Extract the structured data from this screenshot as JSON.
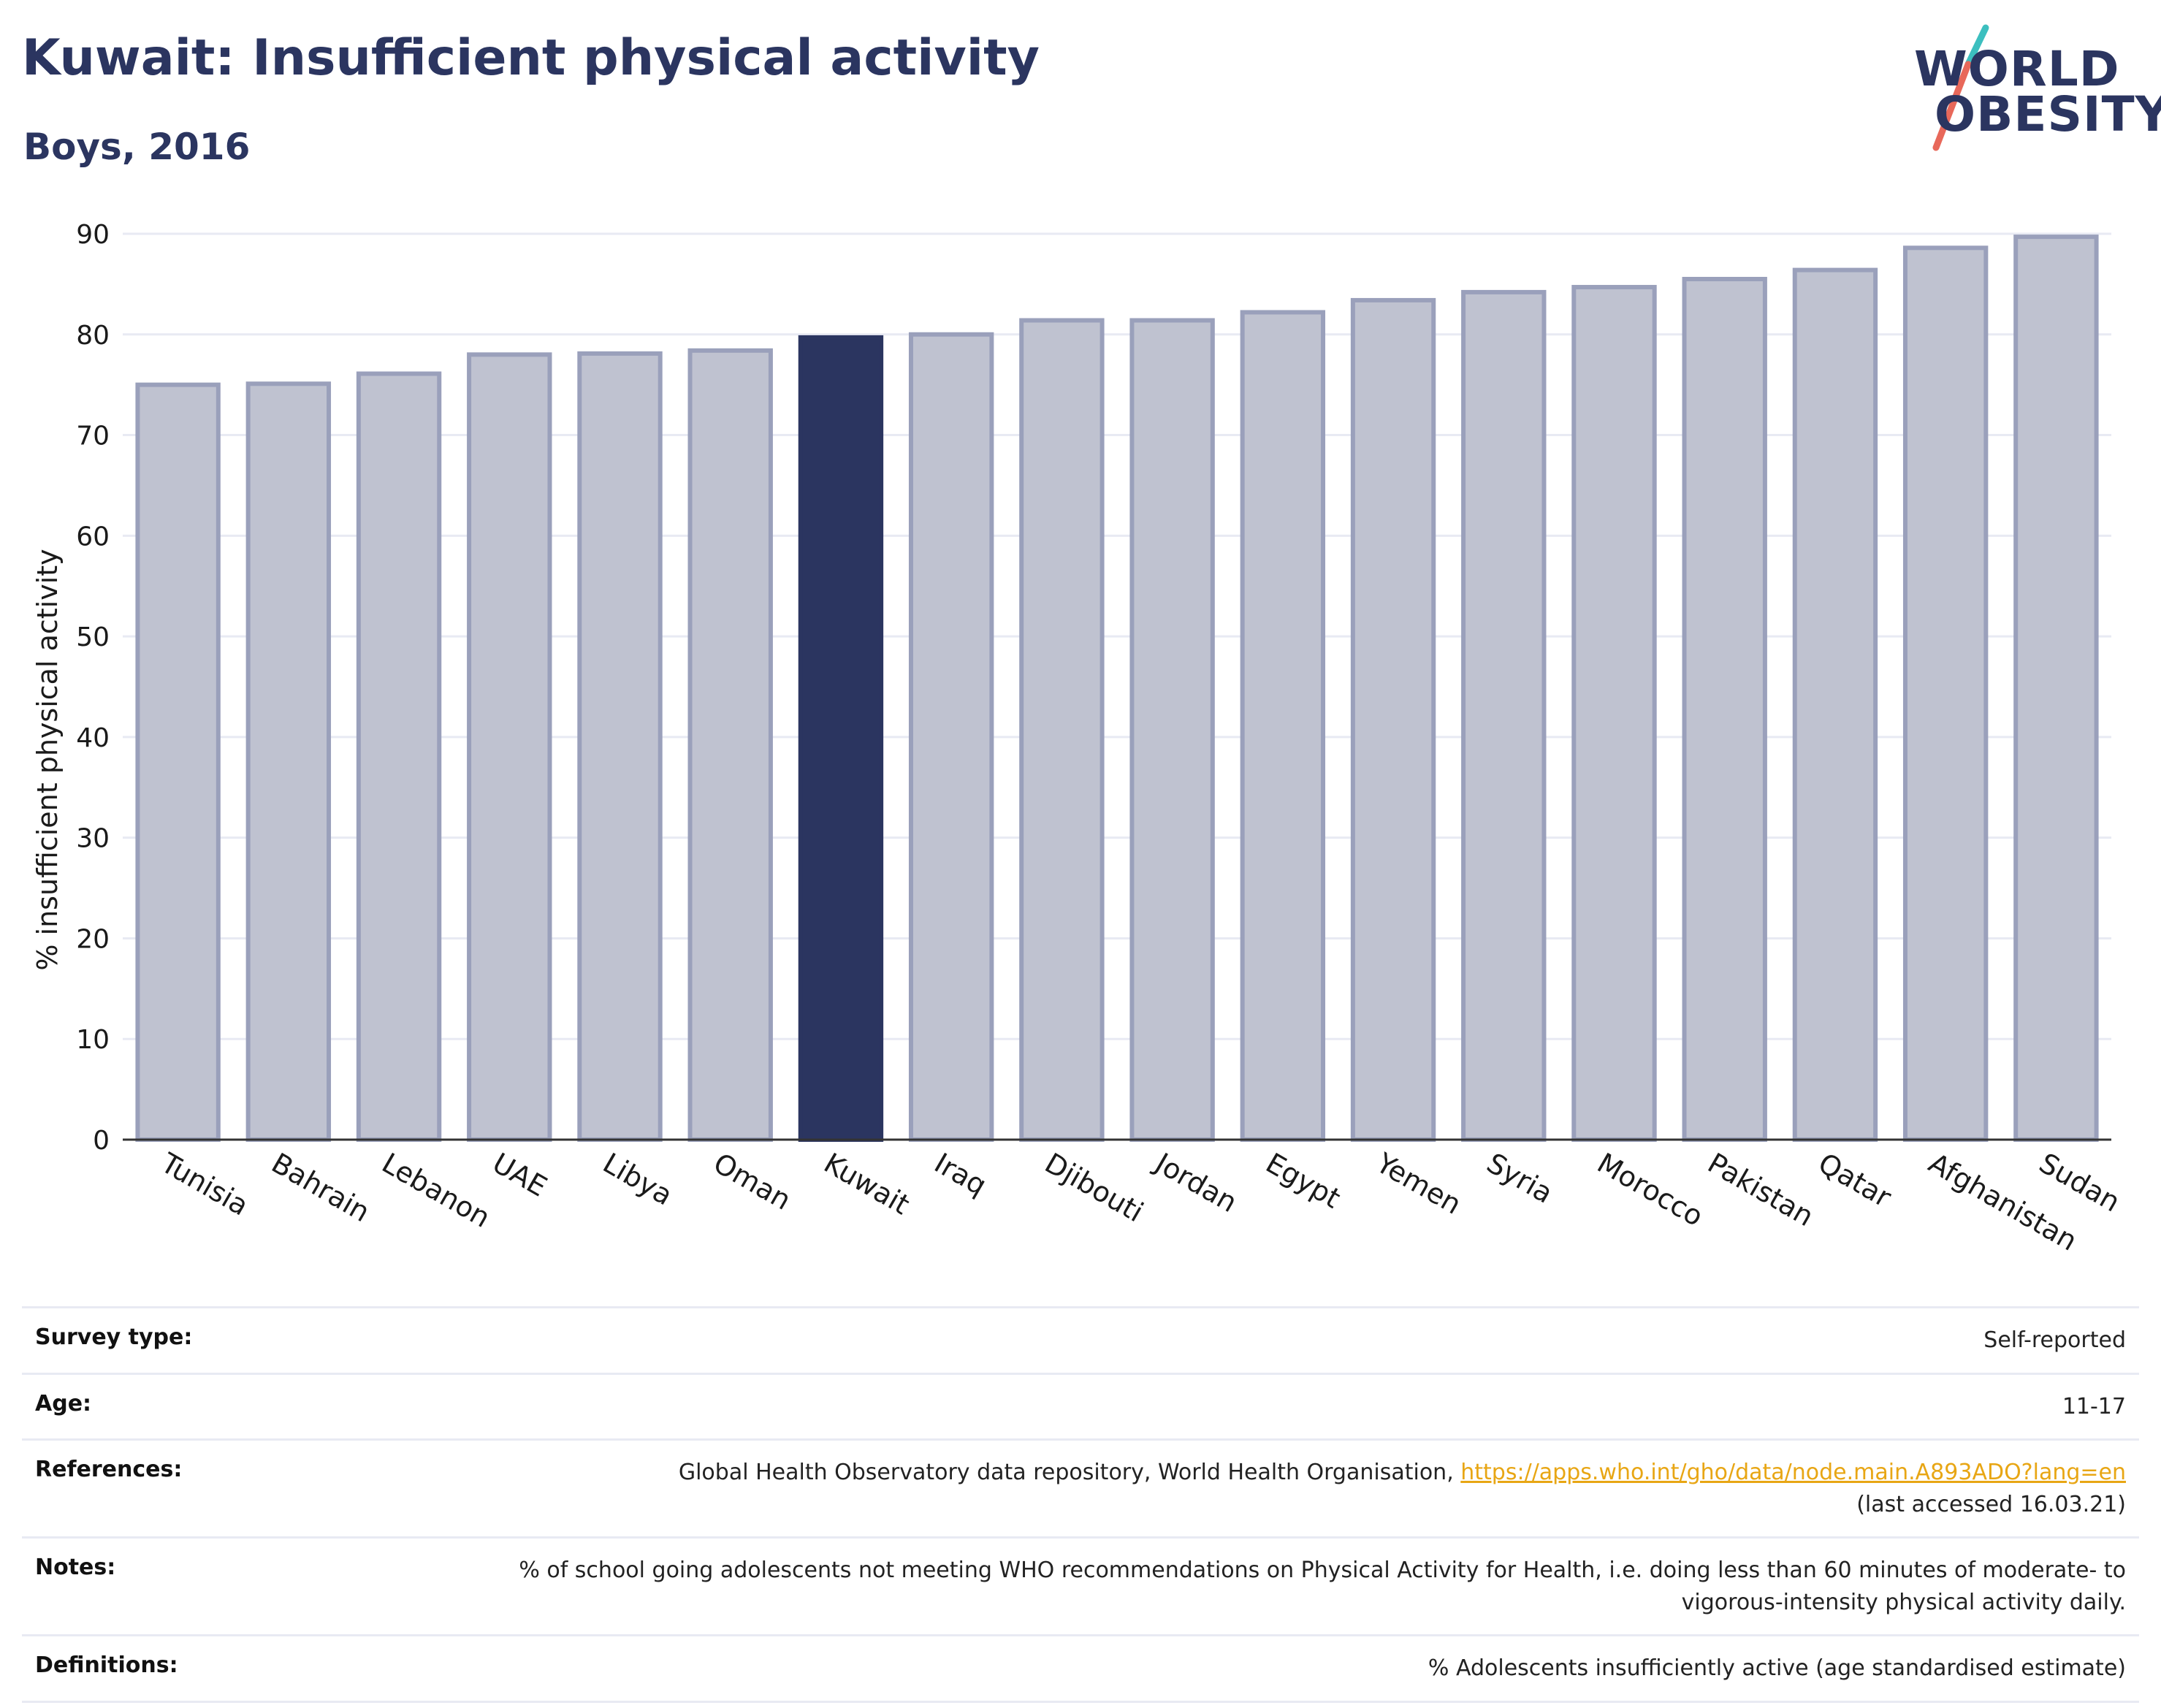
{
  "header": {
    "title": "Kuwait: Insufficient physical activity",
    "subtitle": "Boys, 2016"
  },
  "logo": {
    "line1": "WORLD",
    "line2": "OBESITY",
    "colors": {
      "text": "#2b3560",
      "slash_top": "#3cbfbf",
      "slash_bottom": "#e8685a"
    }
  },
  "chart_data": {
    "type": "bar",
    "title": "Kuwait: Insufficient physical activity",
    "subtitle": "Boys, 2016",
    "ylabel": "% insufficient physical activity",
    "xlabel": "",
    "ylim": [
      0,
      90
    ],
    "yticks": [
      0,
      10,
      20,
      30,
      40,
      50,
      60,
      70,
      80,
      90
    ],
    "grid": true,
    "highlight": "Kuwait",
    "categories": [
      "Tunisia",
      "Bahrain",
      "Lebanon",
      "UAE",
      "Libya",
      "Oman",
      "Kuwait",
      "Iraq",
      "Djibouti",
      "Jordan",
      "Egypt",
      "Yemen",
      "Syria",
      "Morocco",
      "Pakistan",
      "Qatar",
      "Afghanistan",
      "Sudan"
    ],
    "values": [
      75.0,
      75.1,
      76.1,
      78.0,
      78.1,
      78.4,
      79.7,
      80.0,
      81.4,
      81.4,
      82.2,
      83.4,
      84.2,
      84.7,
      85.5,
      86.4,
      88.6,
      89.7
    ],
    "colors": {
      "bar": "#bfc2d0",
      "bar_edge": "#9aa0bb",
      "highlight": "#2b3560",
      "grid": "#e8eaf3",
      "axis": "#333333"
    }
  },
  "info": {
    "rows": [
      {
        "label": "Survey type:",
        "value": "Self-reported"
      },
      {
        "label": "Age:",
        "value": "11-17"
      },
      {
        "label": "References:",
        "value": "Global Health Observatory data repository, World Health Organisation, ",
        "link": "https://apps.who.int/gho/data/node.main.A893ADO?lang=en",
        "value2": "(last accessed 16.03.21)"
      },
      {
        "label": "Notes:",
        "value": "% of school going adolescents not meeting WHO recommendations on Physical Activity for Health, i.e. doing less than 60 minutes of moderate- to vigorous-intensity physical activity daily."
      },
      {
        "label": "Definitions:",
        "value": "% Adolescents insufficiently active (age standardised estimate)"
      }
    ]
  }
}
